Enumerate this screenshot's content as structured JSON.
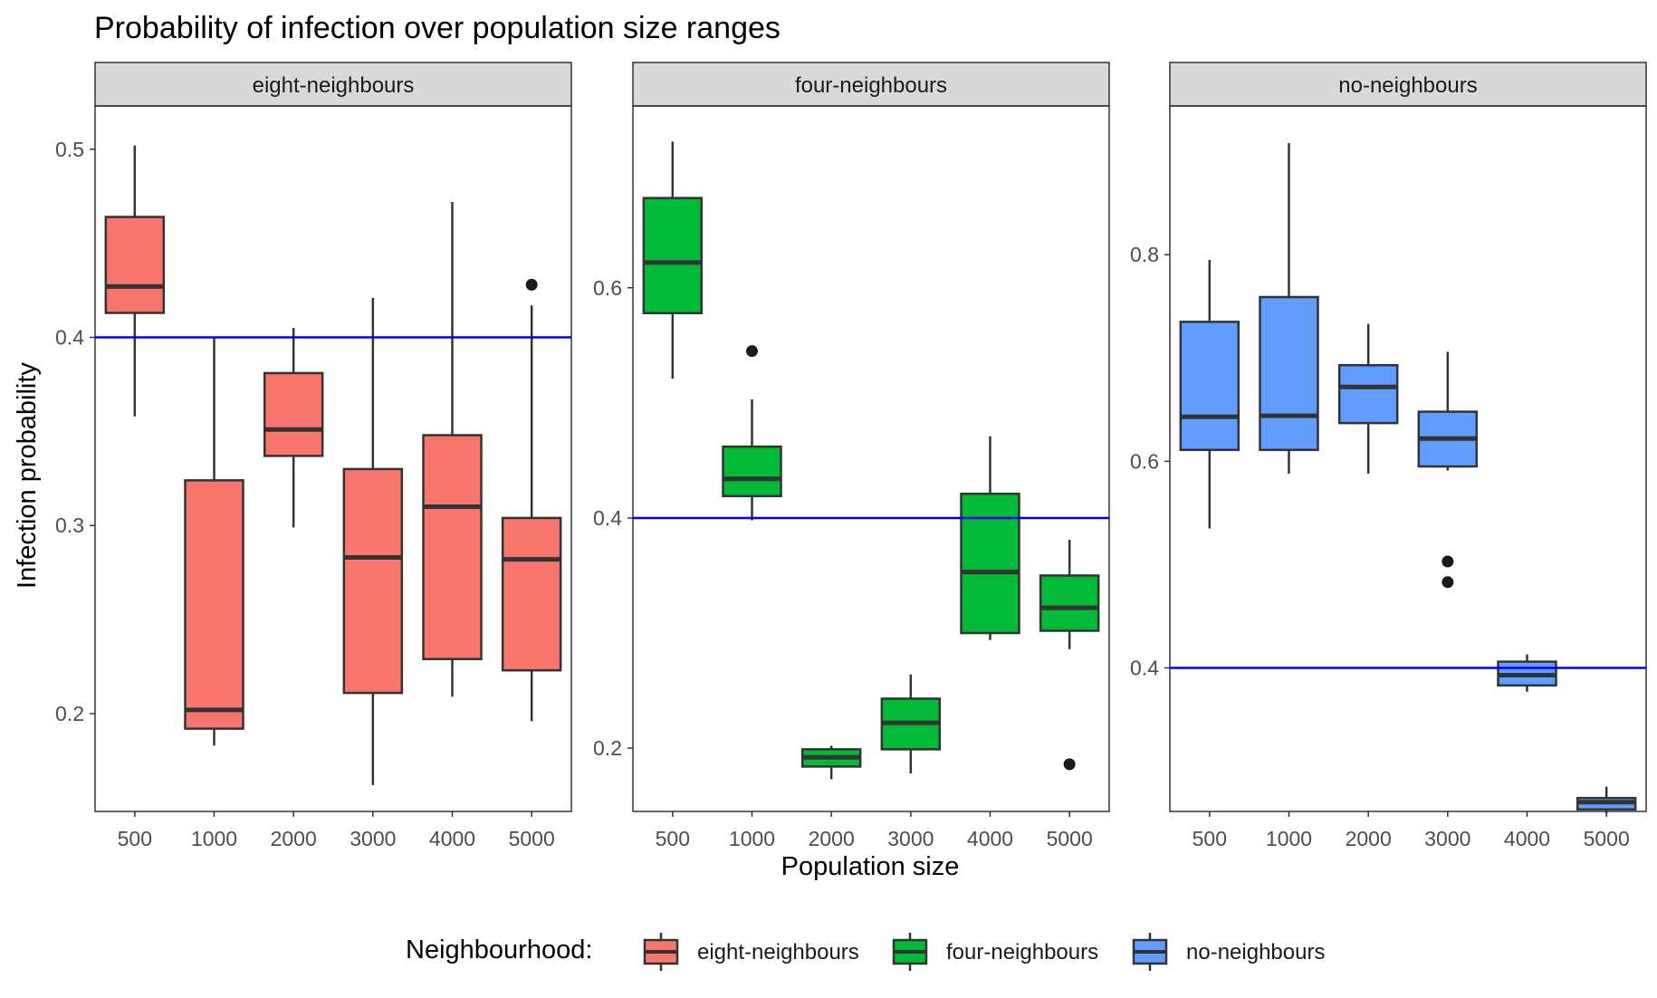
{
  "chart_data": {
    "type": "boxplot",
    "title": "Probability of infection over population size ranges",
    "xlabel": "Population size",
    "ylabel": "Infection probability",
    "categories": [
      "500",
      "1000",
      "2000",
      "3000",
      "4000",
      "5000"
    ],
    "reference_line": {
      "y": 0.4,
      "color": "#0000ee"
    },
    "grid": false,
    "legend": {
      "position": "bottom",
      "title": "Neighbourhood:",
      "items": [
        {
          "label": "eight-neighbours",
          "color": "#F8766D"
        },
        {
          "label": "four-neighbours",
          "color": "#00BA38"
        },
        {
          "label": "no-neighbours",
          "color": "#619CFF"
        }
      ]
    },
    "panels": [
      {
        "strip": "eight-neighbours",
        "color": "#F8766D",
        "ylim": [
          0.148,
          0.523
        ],
        "yticks": [
          0.2,
          0.3,
          0.4,
          0.5
        ],
        "ytick_labels": [
          "0.2",
          "0.3",
          "0.4",
          "0.5"
        ],
        "boxes": [
          {
            "x": "500",
            "whisker_low": 0.358,
            "q1": 0.413,
            "median": 0.427,
            "q3": 0.464,
            "whisker_high": 0.502,
            "outliers": []
          },
          {
            "x": "1000",
            "whisker_low": 0.183,
            "q1": 0.192,
            "median": 0.202,
            "q3": 0.324,
            "whisker_high": 0.4,
            "outliers": []
          },
          {
            "x": "2000",
            "whisker_low": 0.299,
            "q1": 0.337,
            "median": 0.351,
            "q3": 0.381,
            "whisker_high": 0.405,
            "outliers": []
          },
          {
            "x": "3000",
            "whisker_low": 0.162,
            "q1": 0.211,
            "median": 0.283,
            "q3": 0.33,
            "whisker_high": 0.421,
            "outliers": []
          },
          {
            "x": "4000",
            "whisker_low": 0.209,
            "q1": 0.229,
            "median": 0.31,
            "q3": 0.348,
            "whisker_high": 0.472,
            "outliers": []
          },
          {
            "x": "5000",
            "whisker_low": 0.196,
            "q1": 0.223,
            "median": 0.282,
            "q3": 0.304,
            "whisker_high": 0.417,
            "outliers": [
              0.428
            ]
          }
        ]
      },
      {
        "strip": "four-neighbours",
        "color": "#00BA38",
        "ylim": [
          0.145,
          0.758
        ],
        "yticks": [
          0.2,
          0.4,
          0.6
        ],
        "ytick_labels": [
          "0.2",
          "0.4",
          "0.6"
        ],
        "boxes": [
          {
            "x": "500",
            "whisker_low": 0.521,
            "q1": 0.578,
            "median": 0.622,
            "q3": 0.678,
            "whisker_high": 0.727,
            "outliers": []
          },
          {
            "x": "1000",
            "whisker_low": 0.398,
            "q1": 0.419,
            "median": 0.434,
            "q3": 0.462,
            "whisker_high": 0.503,
            "outliers": [
              0.545
            ]
          },
          {
            "x": "2000",
            "whisker_low": 0.173,
            "q1": 0.184,
            "median": 0.192,
            "q3": 0.199,
            "whisker_high": 0.202,
            "outliers": []
          },
          {
            "x": "3000",
            "whisker_low": 0.178,
            "q1": 0.199,
            "median": 0.222,
            "q3": 0.243,
            "whisker_high": 0.264,
            "outliers": []
          },
          {
            "x": "4000",
            "whisker_low": 0.294,
            "q1": 0.3,
            "median": 0.353,
            "q3": 0.421,
            "whisker_high": 0.471,
            "outliers": []
          },
          {
            "x": "5000",
            "whisker_low": 0.286,
            "q1": 0.302,
            "median": 0.322,
            "q3": 0.35,
            "whisker_high": 0.381,
            "outliers": [
              0.186
            ]
          }
        ]
      },
      {
        "strip": "no-neighbours",
        "color": "#619CFF",
        "ylim": [
          0.261,
          0.944
        ],
        "yticks": [
          0.4,
          0.6,
          0.8
        ],
        "ytick_labels": [
          "0.4",
          "0.6",
          "0.8"
        ],
        "boxes": [
          {
            "x": "500",
            "whisker_low": 0.535,
            "q1": 0.611,
            "median": 0.643,
            "q3": 0.735,
            "whisker_high": 0.795,
            "outliers": []
          },
          {
            "x": "1000",
            "whisker_low": 0.588,
            "q1": 0.611,
            "median": 0.644,
            "q3": 0.759,
            "whisker_high": 0.908,
            "outliers": []
          },
          {
            "x": "2000",
            "whisker_low": 0.588,
            "q1": 0.637,
            "median": 0.672,
            "q3": 0.693,
            "whisker_high": 0.733,
            "outliers": []
          },
          {
            "x": "3000",
            "whisker_low": 0.591,
            "q1": 0.595,
            "median": 0.622,
            "q3": 0.648,
            "whisker_high": 0.706,
            "outliers": [
              0.503,
              0.483
            ]
          },
          {
            "x": "4000",
            "whisker_low": 0.377,
            "q1": 0.383,
            "median": 0.393,
            "q3": 0.406,
            "whisker_high": 0.413,
            "outliers": []
          },
          {
            "x": "5000",
            "whisker_low": 0.259,
            "q1": 0.263,
            "median": 0.27,
            "q3": 0.274,
            "whisker_high": 0.285,
            "outliers": []
          }
        ]
      }
    ]
  }
}
